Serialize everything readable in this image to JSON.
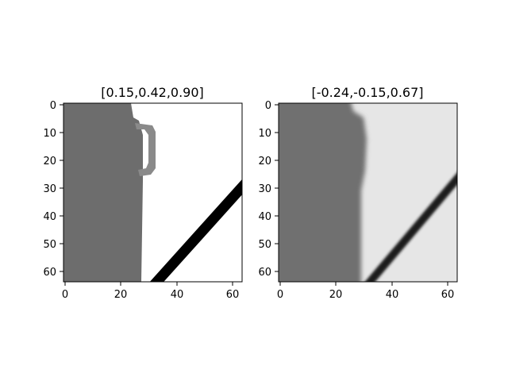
{
  "chart_data": [
    {
      "type": "heatmap",
      "title": "[0.15,0.42,0.90]",
      "colormap": "gray",
      "xlim": [
        0,
        64
      ],
      "ylim": [
        64,
        0
      ],
      "x_ticks": [
        "0",
        "20",
        "40",
        "60"
      ],
      "y_ticks": [
        "0",
        "10",
        "20",
        "30",
        "40",
        "50",
        "60"
      ],
      "image_description": "sharp 64x64 grayscale patch: dark gray region left of x~27, white right, black diagonal stroke from (33,64) to (64,28), small gray hook shape near top at x~25-31"
    },
    {
      "type": "heatmap",
      "title": "[-0.24,-0.15,0.67]",
      "colormap": "gray",
      "xlim": [
        0,
        64
      ],
      "ylim": [
        64,
        0
      ],
      "x_ticks": [
        "0",
        "20",
        "40",
        "60"
      ],
      "y_ticks": [
        "0",
        "10",
        "20",
        "30",
        "40",
        "50",
        "60"
      ],
      "image_description": "blurred reconstruction of the same patch: gray left region with soft boundary near x~30, light gray right, dark diagonal stroke"
    }
  ]
}
